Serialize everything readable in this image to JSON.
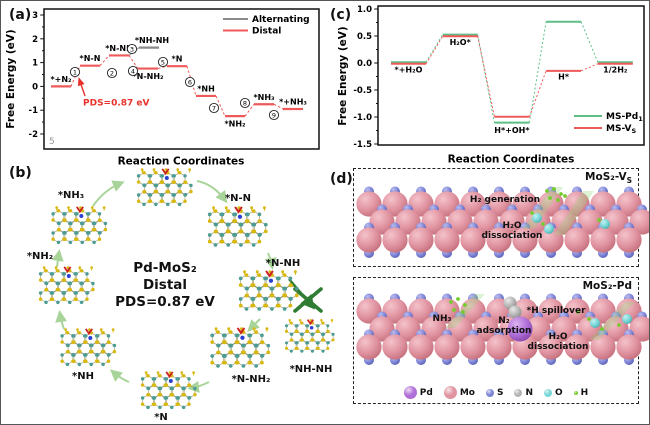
{
  "panels": {
    "a": {
      "tag": "(a)"
    },
    "b": {
      "tag": "(b)",
      "center_text": [
        "Pd-MoS₂",
        "Distal",
        "PDS=0.87 eV"
      ],
      "structures": [
        {
          "label": ""
        },
        {
          "label": "*N-N"
        },
        {
          "label": "*N-NH"
        },
        {
          "label": "*NH-NH",
          "blocked": true
        },
        {
          "label": "*N-NH₂"
        },
        {
          "label": "*N"
        },
        {
          "label": "*NH"
        },
        {
          "label": "*NH₂"
        },
        {
          "label": "*NH₃"
        }
      ]
    },
    "c": {
      "tag": "(c)"
    },
    "d": {
      "tag": "(d)",
      "boxes": [
        {
          "title": "MoS₂-V",
          "title_sub": "S",
          "annotations": [
            "H₂ generation",
            "H₂O dissociation"
          ]
        },
        {
          "title": "MoS₂-Pd",
          "title_sub": "",
          "annotations": [
            "NH₃",
            "N₂ adsorption",
            "*H spillover",
            "H₂O dissociation"
          ]
        }
      ],
      "legend": [
        {
          "symbol": "Pd",
          "color": "#b06fd8",
          "size": "large"
        },
        {
          "symbol": "Mo",
          "color": "#e093a0",
          "size": "large"
        },
        {
          "symbol": "S",
          "color": "#7f85d6",
          "size": "small"
        },
        {
          "symbol": "N",
          "color": "#b5b5b5",
          "size": "small"
        },
        {
          "symbol": "O",
          "color": "#79d6d6",
          "size": "small"
        },
        {
          "symbol": "H",
          "color": "#76cc2e",
          "size": "tiny"
        }
      ]
    }
  },
  "chart_data": [
    {
      "type": "line",
      "subtype": "reaction-free-energy-profile",
      "panel": "a",
      "xlabel": "Reaction Coordinates",
      "ylabel": "Free Energy (eV)",
      "ylim": [
        -2.4,
        3.4
      ],
      "yticks": [
        3,
        2,
        1,
        0,
        -1,
        -2
      ],
      "grid": false,
      "legend_position": "top-right",
      "legend": [
        {
          "name": "Alternating",
          "color": "#8a8a8a"
        },
        {
          "name": "Distal",
          "color": "#ee5a5a"
        }
      ],
      "series": [
        {
          "name": "Distal",
          "color": "#ee5a5a",
          "states": [
            {
              "label": "*+N₂",
              "energy": 0.0,
              "label_pos": "above"
            },
            {
              "label": "*N-N",
              "energy": 0.87,
              "label_pos": "above"
            },
            {
              "label": "*N-NH",
              "energy": 1.3,
              "label_pos": "above"
            },
            {
              "label": "*N-NH₂",
              "energy": 0.75,
              "label_pos": "below"
            },
            {
              "label": "*N",
              "energy": 0.85,
              "label_pos": "above"
            },
            {
              "label": "*NH",
              "energy": -0.4,
              "label_pos": "above"
            },
            {
              "label": "*NH₂",
              "energy": -1.25,
              "label_pos": "below"
            },
            {
              "label": "*NH₃",
              "energy": -0.75,
              "label_pos": "above"
            },
            {
              "label": "*+NH₃",
              "energy": -0.95,
              "label_pos": "above"
            }
          ]
        },
        {
          "name": "Alternating",
          "color": "#8a8a8a",
          "branch_from_state": 2,
          "states": [
            {
              "label": "*NH-NH",
              "energy": 1.63,
              "label_pos": "above"
            }
          ]
        }
      ],
      "step_numbers": [
        "1",
        "2",
        "3",
        "4",
        "5",
        "6",
        "7",
        "8",
        "9"
      ],
      "annotation": {
        "text": "PDS=0.87 eV",
        "color": "#e8312a"
      },
      "corner_text": "5"
    },
    {
      "type": "line",
      "subtype": "reaction-free-energy-profile",
      "panel": "c",
      "xlabel": "Reaction Coordinates",
      "ylabel": "Free Energy (eV)",
      "ylim": [
        -1.5,
        1.0
      ],
      "yticks": [
        1.0,
        0.5,
        0.0,
        -0.5,
        -1.0,
        -1.5
      ],
      "grid": false,
      "legend_position": "bottom-right",
      "categories": [
        "*+H₂O",
        "H₂O*",
        "H*+OH*",
        "H*",
        "1/2H₂"
      ],
      "series": [
        {
          "name": "MS-Pd",
          "name_sub": "1",
          "color": "#5fbe86",
          "values": [
            0.0,
            0.51,
            -1.12,
            0.75,
            0.0
          ]
        },
        {
          "name": "MS-V",
          "name_sub": "S",
          "color": "#ee5a5a",
          "values": [
            0.0,
            0.51,
            -0.98,
            -0.13,
            0.0
          ]
        }
      ]
    }
  ]
}
